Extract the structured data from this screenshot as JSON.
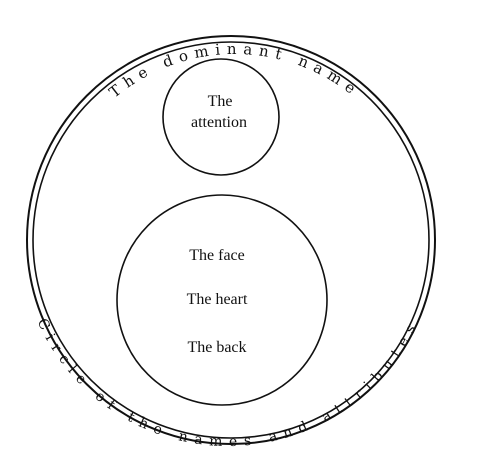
{
  "diagram": {
    "top_arc_label": "The dominant name",
    "bottom_arc_label": "Circle of the names and attributes",
    "small_circle": {
      "lines": [
        "The",
        "attention"
      ]
    },
    "large_inner_circle": {
      "items": [
        "The face",
        "The heart",
        "The back"
      ]
    }
  },
  "colors": {
    "ink": "#111111",
    "background": "#ffffff"
  }
}
